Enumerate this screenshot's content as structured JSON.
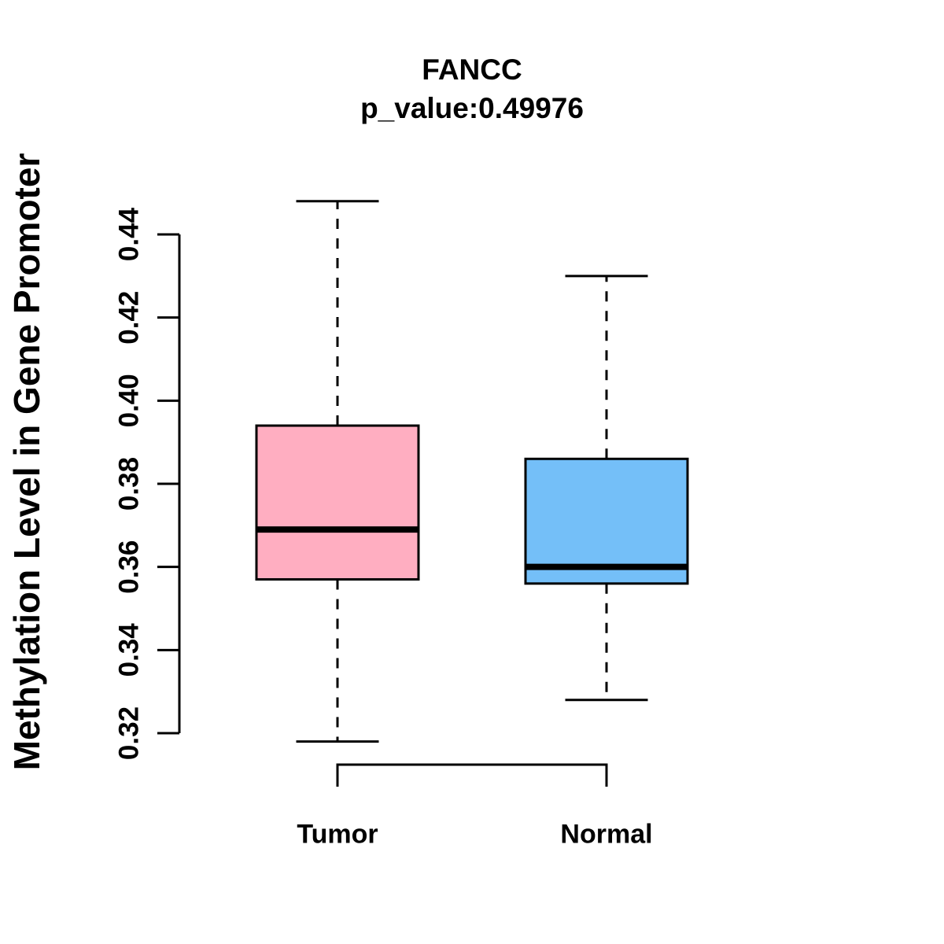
{
  "chart_data": {
    "type": "boxplot",
    "title": "FANCC",
    "subtitle": "p_value:0.49976",
    "ylabel": "Methylation Level in Gene Promoter",
    "xlabel": "",
    "categories": [
      "Tumor",
      "Normal"
    ],
    "yticks": [
      0.32,
      0.34,
      0.36,
      0.38,
      0.4,
      0.42,
      0.44
    ],
    "ylim": [
      0.32,
      0.44
    ],
    "grid": false,
    "legend": false,
    "background_color": "#ffffff",
    "axis_color": "#000000",
    "text_color": "#000000",
    "whisker_style": "dashed",
    "series": [
      {
        "name": "Tumor",
        "color": "#FFAEC1",
        "border_color": "#000000",
        "whisker_low": 0.318,
        "q1": 0.357,
        "median": 0.369,
        "q3": 0.394,
        "whisker_high": 0.448
      },
      {
        "name": "Normal",
        "color": "#74BFF8",
        "border_color": "#000000",
        "whisker_low": 0.328,
        "q1": 0.356,
        "median": 0.36,
        "q3": 0.386,
        "whisker_high": 0.43
      }
    ]
  }
}
